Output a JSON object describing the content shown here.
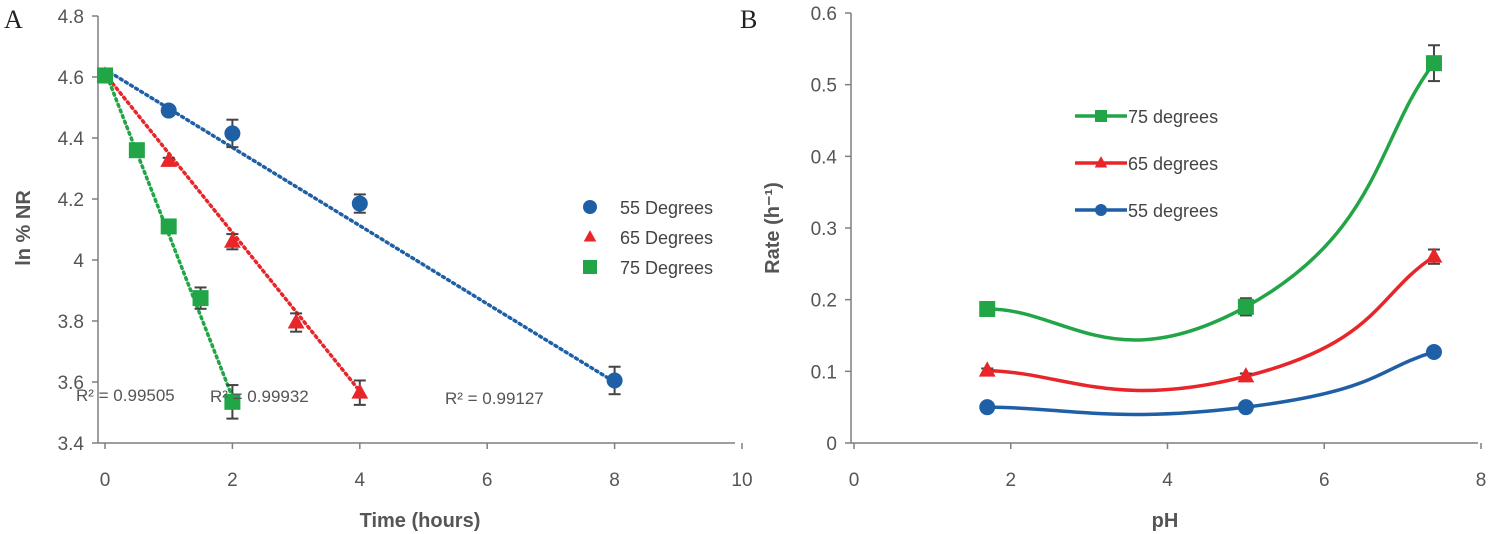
{
  "colors": {
    "blue": "#1F5FA6",
    "red": "#E8262A",
    "green": "#21A547",
    "axis": "#7f7f7f",
    "errorbar": "#444444"
  },
  "chart_data": [
    {
      "panel": "A",
      "type": "scatter",
      "xlabel": "Time (hours)",
      "ylabel": "ln % NR",
      "xlim": [
        0,
        10
      ],
      "ylim": [
        3.4,
        4.8
      ],
      "xticks": [
        0,
        2,
        4,
        6,
        8,
        10
      ],
      "xtick_labels": [
        "0",
        "2",
        "4",
        "6",
        "8",
        "10"
      ],
      "yticks": [
        3.4,
        3.6,
        3.8,
        4.0,
        4.2,
        4.4,
        4.6,
        4.8
      ],
      "ytick_labels": [
        "3.4",
        "3.6",
        "3.8",
        "4",
        "4.2",
        "4.4",
        "4.6",
        "4.8"
      ],
      "legend_position": "right",
      "series": [
        {
          "name": "55 Degrees",
          "marker": "circle",
          "color": "#1F5FA6",
          "x": [
            0,
            1,
            2,
            4,
            8
          ],
          "y": [
            4.605,
            4.49,
            4.415,
            4.185,
            3.605
          ],
          "err": [
            0,
            0.015,
            0.045,
            0.03,
            0.045
          ],
          "trend": {
            "x": [
              0,
              8
            ],
            "y": [
              4.625,
              3.6
            ]
          },
          "r2": "R² = 0.99127"
        },
        {
          "name": "65 Degrees",
          "marker": "triangle",
          "color": "#E8262A",
          "x": [
            0,
            1,
            2,
            3,
            4
          ],
          "y": [
            4.605,
            4.325,
            4.06,
            3.795,
            3.565
          ],
          "err": [
            0,
            0.01,
            0.025,
            0.03,
            0.04
          ],
          "trend": {
            "x": [
              0,
              4
            ],
            "y": [
              4.61,
              3.57
            ]
          },
          "r2": "R² = 0.99932"
        },
        {
          "name": "75 Degrees",
          "marker": "square",
          "color": "#21A547",
          "x": [
            0,
            0.5,
            1,
            1.5,
            2
          ],
          "y": [
            4.605,
            4.36,
            4.11,
            3.875,
            3.535
          ],
          "err": [
            0,
            0.01,
            0.015,
            0.035,
            0.055
          ],
          "trend": {
            "x": [
              0,
              2
            ],
            "y": [
              4.62,
              3.55
            ]
          },
          "r2": "R² = 0.99505"
        }
      ]
    },
    {
      "panel": "B",
      "type": "line",
      "xlabel": "pH",
      "ylabel": "Rate (h⁻¹)",
      "xlim": [
        0,
        8
      ],
      "ylim": [
        0,
        0.6
      ],
      "xticks": [
        0,
        2,
        4,
        6,
        8
      ],
      "xtick_labels": [
        "0",
        "2",
        "4",
        "6",
        "8"
      ],
      "yticks": [
        0,
        0.1,
        0.2,
        0.3,
        0.4,
        0.5,
        0.6
      ],
      "ytick_labels": [
        "0",
        "0.1",
        "0.2",
        "0.3",
        "0.4",
        "0.5",
        "0.6"
      ],
      "legend_position": "top-left",
      "series": [
        {
          "name": "75 degrees",
          "marker": "square",
          "color": "#21A547",
          "x": [
            1.7,
            5.0,
            7.4
          ],
          "y": [
            0.187,
            0.19,
            0.53
          ],
          "err": [
            0.005,
            0.012,
            0.025
          ]
        },
        {
          "name": "65 degrees",
          "marker": "triangle",
          "color": "#E8262A",
          "x": [
            1.7,
            5.0,
            7.4
          ],
          "y": [
            0.101,
            0.093,
            0.26
          ],
          "err": [
            0.003,
            0.004,
            0.01
          ]
        },
        {
          "name": "55 degrees",
          "marker": "circle",
          "color": "#1F5FA6",
          "x": [
            1.7,
            5.0,
            7.4
          ],
          "y": [
            0.05,
            0.05,
            0.127
          ],
          "err": [
            0.002,
            0.002,
            0.004
          ]
        }
      ]
    }
  ]
}
